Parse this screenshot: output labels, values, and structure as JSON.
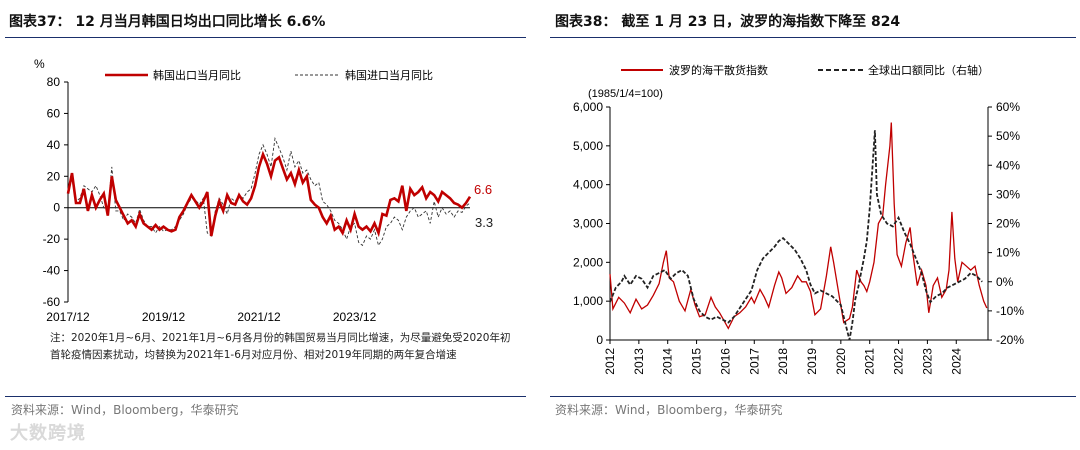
{
  "left": {
    "title": "图表37：  12 月当月韩国日均出口同比增长 6.6%",
    "note": "注：2020年1月~6月、2021年1月~6月各月份的韩国贸易当月同比增速，为尽量避免受2020年初首轮疫情因素扰动，均替换为2021年1-6月对应月份、相对2019年同期的两年复合增速",
    "source": "资料来源：Wind，Bloomberg，华泰研究",
    "unit": "%",
    "last_export_label": "6.6",
    "last_import_label": "3.3",
    "colors": {
      "export": "#c00000",
      "import": "#333333"
    }
  },
  "right": {
    "title": "图表38：  截至 1 月 23 日，波罗的海指数下降至 824",
    "source": "资料来源：Wind，Bloomberg，华泰研究",
    "base_label": "(1985/1/4=100)",
    "colors": {
      "bdi": "#c00000",
      "exports": "#222222"
    }
  },
  "watermark": "大数跨境",
  "chart_data": [
    {
      "type": "line",
      "title": "12 月当月韩国日均出口同比增长 6.6%",
      "ylabel": "%",
      "ylim": [
        -60,
        80
      ],
      "yticks": [
        "80",
        "60",
        "40",
        "20",
        "0",
        "-20",
        "-40",
        "-60"
      ],
      "xticks": [
        "2017/12",
        "2019/12",
        "2021/12",
        "2023/12"
      ],
      "x_range": [
        "2017/12",
        "2024/12"
      ],
      "series": [
        {
          "name": "韩国出口当月同比",
          "values": [
            9,
            22,
            3,
            3,
            12,
            -2,
            8,
            0,
            5,
            9,
            -5,
            20,
            5,
            0,
            -5,
            -10,
            -8,
            -12,
            -4,
            -10,
            -12,
            -14,
            -11,
            -14,
            -12,
            -14,
            -15,
            -14,
            -6,
            -2,
            3,
            8,
            4,
            0,
            4,
            10,
            -18,
            -5,
            4,
            -2,
            8,
            3,
            2,
            8,
            4,
            2,
            6,
            14,
            26,
            34,
            28,
            20,
            30,
            32,
            25,
            18,
            22,
            15,
            24,
            16,
            20,
            5,
            2,
            0,
            -6,
            -10,
            -5,
            -14,
            -12,
            -16,
            -8,
            -14,
            -4,
            -12,
            -14,
            -12,
            -15,
            -10,
            -16,
            -4,
            -5,
            5,
            6,
            4,
            14,
            -2,
            12,
            8,
            10,
            13,
            6,
            10,
            8,
            4,
            10,
            8,
            6,
            3,
            2,
            0,
            3,
            7
          ]
        },
        {
          "name": "韩国进口当月同比",
          "values": [
            12,
            18,
            4,
            6,
            14,
            12,
            10,
            14,
            8,
            0,
            -2,
            26,
            -2,
            -2,
            -8,
            -4,
            -6,
            -10,
            -1,
            -8,
            -12,
            -12,
            -16,
            -12,
            -15,
            -14,
            -14,
            -12,
            -8,
            -4,
            2,
            6,
            5,
            2,
            6,
            -16,
            -18,
            -2,
            6,
            2,
            -4,
            6,
            4,
            8,
            6,
            10,
            12,
            22,
            34,
            40,
            34,
            26,
            44,
            38,
            32,
            24,
            36,
            26,
            30,
            22,
            24,
            18,
            14,
            16,
            4,
            2,
            -2,
            -8,
            -10,
            -14,
            -20,
            -12,
            -10,
            -22,
            -24,
            -18,
            -20,
            -14,
            -24,
            -20,
            -12,
            -10,
            -6,
            -8,
            -14,
            -6,
            -2,
            0,
            -6,
            -4,
            -2,
            -10,
            4,
            -6,
            0,
            -4,
            -2,
            -6,
            -2,
            -3,
            1,
            3
          ]
        }
      ]
    },
    {
      "type": "line",
      "title": "截至 1 月 23 日，波罗的海指数下降至 824",
      "y_left": {
        "ylim": [
          0,
          6000
        ],
        "ticks": [
          "6,000",
          "5,000",
          "4,000",
          "3,000",
          "2,000",
          "1,000",
          "0"
        ]
      },
      "y_right": {
        "ylim": [
          -20,
          60
        ],
        "ticks": [
          "60%",
          "50%",
          "40%",
          "30%",
          "20%",
          "10%",
          "0%",
          "-10%",
          "-20%"
        ]
      },
      "xticks": [
        "2012",
        "2013",
        "2014",
        "2015",
        "2016",
        "2017",
        "2018",
        "2019",
        "2020",
        "2021",
        "2022",
        "2023",
        "2024"
      ],
      "x_range": [
        2012.0,
        2025.1
      ],
      "series": [
        {
          "name": "波罗的海干散货指数",
          "axis": "left",
          "points": [
            [
              2012.0,
              1700
            ],
            [
              2012.1,
              800
            ],
            [
              2012.3,
              1100
            ],
            [
              2012.5,
              950
            ],
            [
              2012.7,
              700
            ],
            [
              2012.9,
              1050
            ],
            [
              2013.1,
              800
            ],
            [
              2013.3,
              900
            ],
            [
              2013.5,
              1150
            ],
            [
              2013.7,
              1450
            ],
            [
              2013.85,
              2000
            ],
            [
              2013.95,
              2300
            ],
            [
              2014.05,
              1600
            ],
            [
              2014.2,
              1500
            ],
            [
              2014.4,
              1000
            ],
            [
              2014.6,
              750
            ],
            [
              2014.8,
              1300
            ],
            [
              2014.95,
              900
            ],
            [
              2015.1,
              600
            ],
            [
              2015.3,
              650
            ],
            [
              2015.5,
              1100
            ],
            [
              2015.65,
              850
            ],
            [
              2015.8,
              700
            ],
            [
              2015.95,
              500
            ],
            [
              2016.1,
              300
            ],
            [
              2016.3,
              600
            ],
            [
              2016.5,
              700
            ],
            [
              2016.7,
              850
            ],
            [
              2016.9,
              1100
            ],
            [
              2017.0,
              950
            ],
            [
              2017.2,
              1300
            ],
            [
              2017.35,
              1100
            ],
            [
              2017.5,
              850
            ],
            [
              2017.7,
              1400
            ],
            [
              2017.85,
              1750
            ],
            [
              2017.95,
              1600
            ],
            [
              2018.1,
              1200
            ],
            [
              2018.3,
              1350
            ],
            [
              2018.5,
              1650
            ],
            [
              2018.65,
              1500
            ],
            [
              2018.8,
              1500
            ],
            [
              2018.95,
              1250
            ],
            [
              2019.1,
              650
            ],
            [
              2019.3,
              800
            ],
            [
              2019.5,
              1650
            ],
            [
              2019.65,
              2400
            ],
            [
              2019.75,
              2000
            ],
            [
              2019.95,
              1100
            ],
            [
              2020.1,
              450
            ],
            [
              2020.3,
              550
            ],
            [
              2020.4,
              850
            ],
            [
              2020.55,
              1800
            ],
            [
              2020.7,
              1500
            ],
            [
              2020.8,
              1400
            ],
            [
              2020.9,
              1250
            ],
            [
              2021.0,
              1500
            ],
            [
              2021.15,
              2000
            ],
            [
              2021.3,
              3000
            ],
            [
              2021.45,
              3200
            ],
            [
              2021.55,
              4000
            ],
            [
              2021.7,
              5000
            ],
            [
              2021.75,
              5600
            ],
            [
              2021.85,
              3500
            ],
            [
              2021.95,
              2200
            ],
            [
              2022.1,
              1900
            ],
            [
              2022.25,
              2500
            ],
            [
              2022.4,
              2900
            ],
            [
              2022.5,
              2200
            ],
            [
              2022.65,
              1400
            ],
            [
              2022.8,
              1800
            ],
            [
              2022.95,
              1400
            ],
            [
              2023.05,
              700
            ],
            [
              2023.2,
              1400
            ],
            [
              2023.35,
              1600
            ],
            [
              2023.5,
              1100
            ],
            [
              2023.65,
              1300
            ],
            [
              2023.75,
              1800
            ],
            [
              2023.85,
              3300
            ],
            [
              2023.95,
              2100
            ],
            [
              2024.05,
              1500
            ],
            [
              2024.2,
              2000
            ],
            [
              2024.35,
              1900
            ],
            [
              2024.5,
              1800
            ],
            [
              2024.65,
              1900
            ],
            [
              2024.8,
              1400
            ],
            [
              2024.95,
              1000
            ],
            [
              2025.06,
              824
            ]
          ]
        },
        {
          "name": "全球出口额同比（右轴）",
          "axis": "right",
          "points": [
            [
              2012.0,
              -7
            ],
            [
              2012.2,
              -2
            ],
            [
              2012.4,
              0
            ],
            [
              2012.5,
              2
            ],
            [
              2012.7,
              -1
            ],
            [
              2012.9,
              2
            ],
            [
              2013.1,
              1
            ],
            [
              2013.3,
              -2
            ],
            [
              2013.5,
              2
            ],
            [
              2013.7,
              3
            ],
            [
              2013.9,
              4
            ],
            [
              2014.1,
              1
            ],
            [
              2014.3,
              3
            ],
            [
              2014.5,
              4
            ],
            [
              2014.7,
              2
            ],
            [
              2014.8,
              -2
            ],
            [
              2014.9,
              -6
            ],
            [
              2015.1,
              -10
            ],
            [
              2015.3,
              -12
            ],
            [
              2015.5,
              -13
            ],
            [
              2015.7,
              -12
            ],
            [
              2015.9,
              -13
            ],
            [
              2016.1,
              -14
            ],
            [
              2016.3,
              -12
            ],
            [
              2016.5,
              -9
            ],
            [
              2016.7,
              -6
            ],
            [
              2016.9,
              -3
            ],
            [
              2017.1,
              4
            ],
            [
              2017.3,
              8
            ],
            [
              2017.5,
              10
            ],
            [
              2017.7,
              12
            ],
            [
              2017.85,
              14
            ],
            [
              2018.0,
              15
            ],
            [
              2018.2,
              13
            ],
            [
              2018.4,
              11
            ],
            [
              2018.6,
              8
            ],
            [
              2018.8,
              4
            ],
            [
              2018.95,
              -1
            ],
            [
              2019.1,
              -4
            ],
            [
              2019.3,
              -3
            ],
            [
              2019.5,
              -4
            ],
            [
              2019.7,
              -5
            ],
            [
              2019.9,
              -7
            ],
            [
              2020.0,
              -8
            ],
            [
              2020.1,
              -12
            ],
            [
              2020.2,
              -16
            ],
            [
              2020.3,
              -20
            ],
            [
              2020.4,
              -14
            ],
            [
              2020.5,
              -6
            ],
            [
              2020.6,
              -2
            ],
            [
              2020.7,
              3
            ],
            [
              2020.8,
              8
            ],
            [
              2020.9,
              14
            ],
            [
              2021.0,
              25
            ],
            [
              2021.1,
              40
            ],
            [
              2021.18,
              52
            ],
            [
              2021.25,
              30
            ],
            [
              2021.4,
              23
            ],
            [
              2021.6,
              20
            ],
            [
              2021.8,
              19
            ],
            [
              2022.0,
              22
            ],
            [
              2022.2,
              17
            ],
            [
              2022.4,
              13
            ],
            [
              2022.6,
              8
            ],
            [
              2022.8,
              3
            ],
            [
              2022.95,
              -3
            ],
            [
              2023.1,
              -7
            ],
            [
              2023.3,
              -5
            ],
            [
              2023.5,
              -4
            ],
            [
              2023.7,
              -2
            ],
            [
              2023.9,
              -1
            ],
            [
              2024.1,
              0
            ],
            [
              2024.3,
              1
            ],
            [
              2024.5,
              3
            ],
            [
              2024.7,
              2
            ],
            [
              2024.9,
              0
            ]
          ]
        }
      ]
    }
  ]
}
